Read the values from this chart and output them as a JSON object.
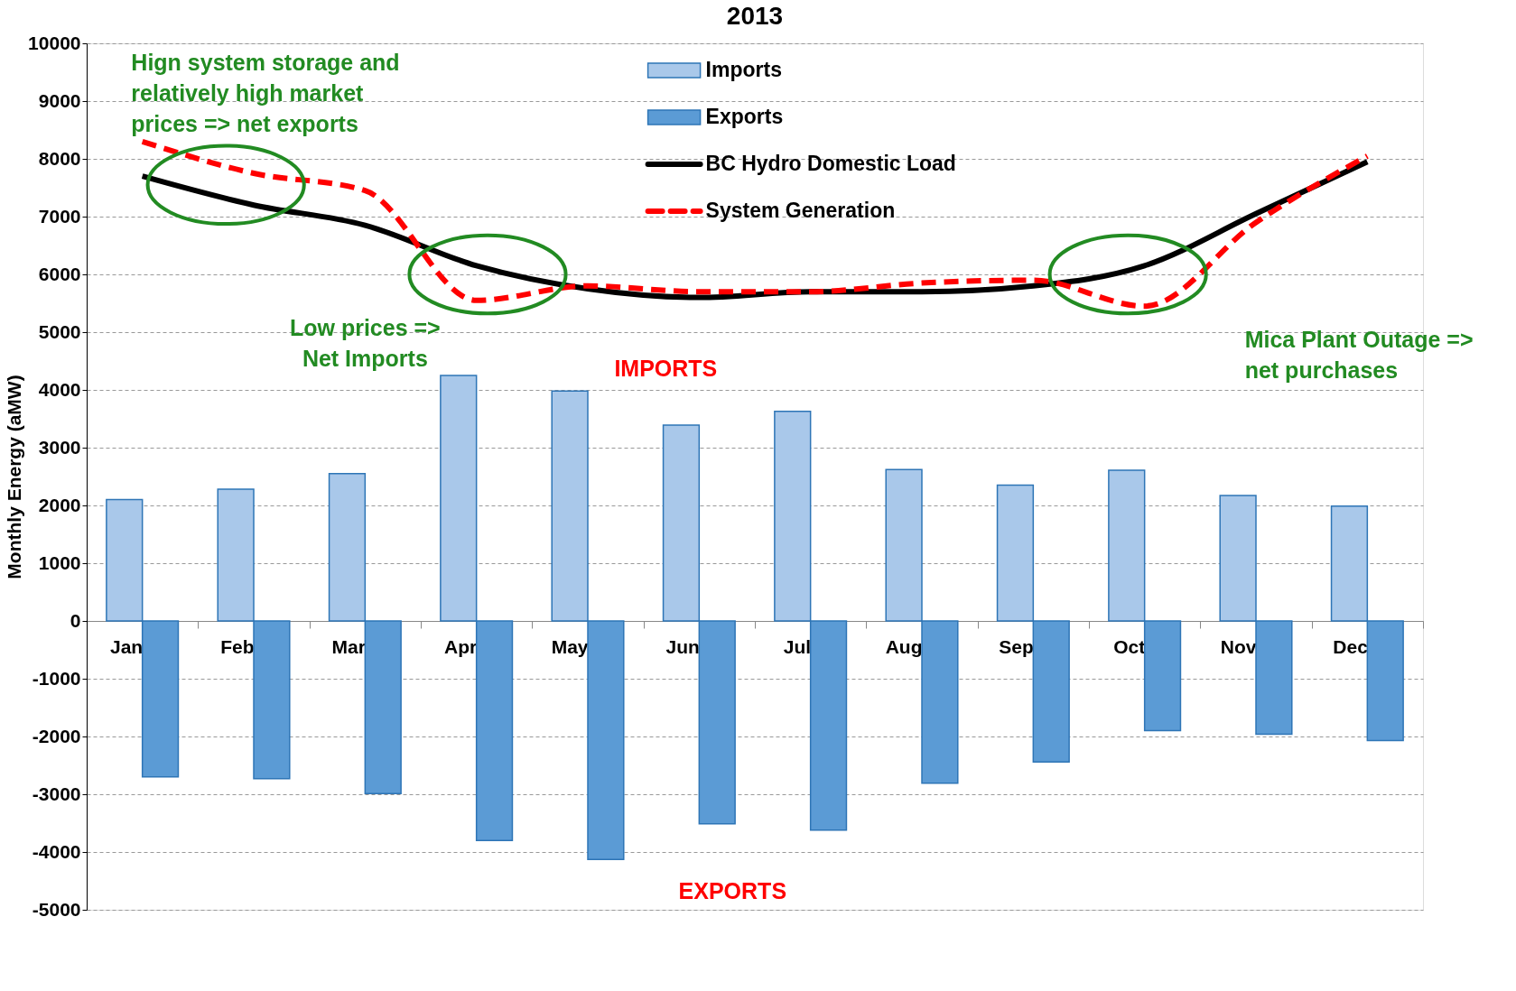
{
  "chart_data": {
    "type": "bar",
    "title": "2013",
    "ylabel": "Monthly Energy (aMW)",
    "categories": [
      "Jan",
      "Feb",
      "Mar",
      "Apr",
      "May",
      "Jun",
      "Jul",
      "Aug",
      "Sep",
      "Oct",
      "Nov",
      "Dec"
    ],
    "series": [
      {
        "name": "Imports",
        "color": "#a9c8ea",
        "values": [
          2100,
          2280,
          2550,
          4250,
          3980,
          3390,
          3630,
          2620,
          2350,
          2610,
          2170,
          1990
        ]
      },
      {
        "name": "Exports",
        "color": "#5b9bd5",
        "values": [
          -2700,
          -2730,
          -2990,
          -3800,
          -4130,
          -3510,
          -3620,
          -2810,
          -2440,
          -1900,
          -1960,
          -2070
        ]
      },
      {
        "name": "BC Hydro Domestic Load",
        "type": "line",
        "color": "#000000",
        "line_style": "solid",
        "values": [
          7700,
          7200,
          6850,
          6150,
          5750,
          5600,
          5700,
          5700,
          5800,
          6150,
          7050,
          7950
        ]
      },
      {
        "name": "System Generation",
        "type": "line",
        "color": "#ff0000",
        "line_style": "dashed",
        "values": [
          8300,
          7750,
          7450,
          5550,
          5800,
          5700,
          5700,
          5850,
          5900,
          5450,
          6900,
          8050
        ]
      }
    ],
    "ylim": [
      -5000,
      10000
    ],
    "yticks": [
      -5000,
      -4000,
      -3000,
      -2000,
      -1000,
      0,
      1000,
      2000,
      3000,
      4000,
      5000,
      6000,
      7000,
      8000,
      9000,
      10000
    ],
    "grid": "y",
    "legend": "top",
    "annotations": [
      "Hign system storage and relatively high market prices => net exports",
      "Low prices => Net Imports",
      "Mica Plant Outage => net purchases",
      "IMPORTS",
      "EXPORTS"
    ]
  }
}
